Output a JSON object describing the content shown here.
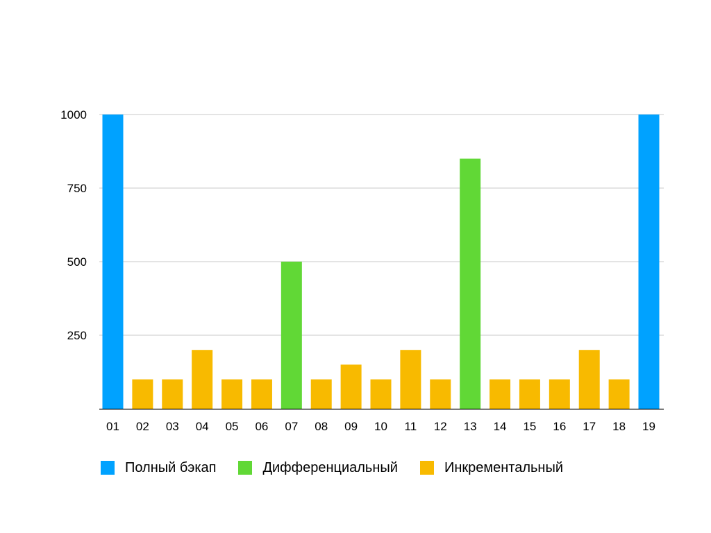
{
  "chart_data": {
    "type": "bar",
    "categories": [
      "01",
      "02",
      "03",
      "04",
      "05",
      "06",
      "07",
      "08",
      "09",
      "10",
      "11",
      "12",
      "13",
      "14",
      "15",
      "16",
      "17",
      "18",
      "19"
    ],
    "values": [
      1000,
      100,
      100,
      200,
      100,
      100,
      500,
      100,
      150,
      100,
      200,
      100,
      850,
      100,
      100,
      100,
      200,
      100,
      1000
    ],
    "bar_series": [
      "full",
      "incr",
      "incr",
      "incr",
      "incr",
      "incr",
      "diff",
      "incr",
      "incr",
      "incr",
      "incr",
      "incr",
      "diff",
      "incr",
      "incr",
      "incr",
      "incr",
      "incr",
      "full"
    ],
    "series": [
      {
        "key": "full",
        "name": "Полный бэкап",
        "color": "#00A2FF"
      },
      {
        "key": "diff",
        "name": "Дифференциальный",
        "color": "#61D836"
      },
      {
        "key": "incr",
        "name": "Инкрементальный",
        "color": "#F8BA00"
      }
    ],
    "yticks": [
      250,
      500,
      750,
      1000
    ],
    "ylim": [
      0,
      1000
    ],
    "grid": true,
    "legend_position": "bottom-left",
    "title": "",
    "xlabel": "",
    "ylabel": ""
  }
}
